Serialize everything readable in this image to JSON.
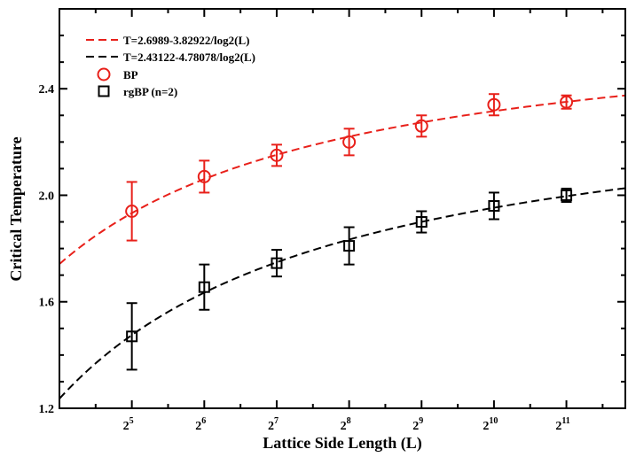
{
  "chart_data": {
    "type": "scatter",
    "xlabel": "Lattice Side Length (L)",
    "ylabel": "Critical Temperature",
    "x_scale": "log2",
    "xlim": [
      16,
      3600
    ],
    "ylim": [
      1.2,
      2.7
    ],
    "x_ticks": [
      {
        "value": 32,
        "base": "2",
        "exp": "5"
      },
      {
        "value": 64,
        "base": "2",
        "exp": "6"
      },
      {
        "value": 128,
        "base": "2",
        "exp": "7"
      },
      {
        "value": 256,
        "base": "2",
        "exp": "8"
      },
      {
        "value": 512,
        "base": "2",
        "exp": "9"
      },
      {
        "value": 1024,
        "base": "2",
        "exp": "10"
      },
      {
        "value": 2048,
        "base": "2",
        "exp": "11"
      }
    ],
    "y_ticks": [
      {
        "value": 1.2,
        "label": "1.2"
      },
      {
        "value": 1.6,
        "label": "1.6"
      },
      {
        "value": 2.0,
        "label": "2.0"
      },
      {
        "value": 2.4,
        "label": "2.4"
      }
    ],
    "grid": false,
    "legend_position": "top-left",
    "series": [
      {
        "name": "BP",
        "marker": "circle",
        "color": "#e8201a",
        "x": [
          32,
          64,
          128,
          256,
          512,
          1024,
          2048
        ],
        "y": [
          1.94,
          2.07,
          2.15,
          2.2,
          2.26,
          2.34,
          2.35
        ],
        "err": [
          0.11,
          0.06,
          0.04,
          0.05,
          0.04,
          0.04,
          0.025
        ]
      },
      {
        "name": "rgBP (n=2)",
        "marker": "square",
        "color": "#000000",
        "x": [
          32,
          64,
          128,
          256,
          512,
          1024,
          2048
        ],
        "y": [
          1.47,
          1.655,
          1.745,
          1.81,
          1.9,
          1.96,
          2.0
        ],
        "err": [
          0.125,
          0.085,
          0.05,
          0.07,
          0.04,
          0.05,
          0.025
        ]
      }
    ],
    "fits": [
      {
        "name": "T=2.6989-3.82922/log2(L)",
        "a": 2.6989,
        "b": 3.82922,
        "color": "#e8201a",
        "dash": "9,5"
      },
      {
        "name": "T=2.43122-4.78078/log2(L)",
        "a": 2.43122,
        "b": 4.78078,
        "color": "#000000",
        "dash": "9,5"
      }
    ]
  }
}
